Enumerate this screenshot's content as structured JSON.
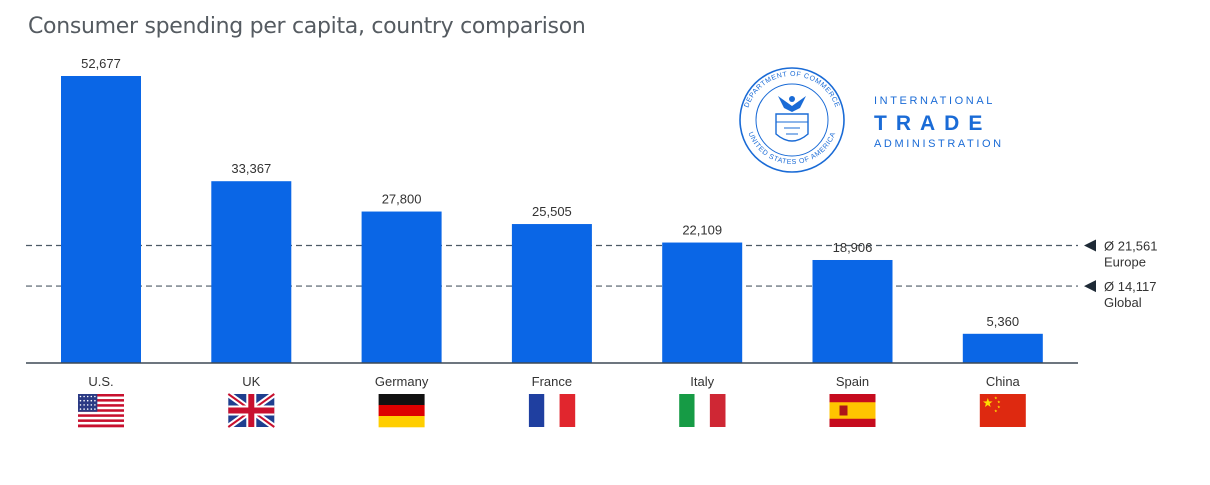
{
  "chart_data": {
    "type": "bar",
    "title": "Consumer spending per capita, country comparison",
    "categories": [
      "U.S.",
      "UK",
      "Germany",
      "France",
      "Italy",
      "Spain",
      "China"
    ],
    "values": [
      52677,
      33367,
      27800,
      25505,
      22109,
      18906,
      5360
    ],
    "value_labels": [
      "52,677",
      "33,367",
      "27,800",
      "25,505",
      "22,109",
      "18,906",
      "5,360"
    ],
    "ylim": [
      0,
      52677
    ],
    "reference_lines": [
      {
        "value": 21561,
        "value_label": "Ø 21,561",
        "label": "Europe"
      },
      {
        "value": 14117,
        "value_label": "Ø 14,117",
        "label": "Global"
      }
    ],
    "xlabel": "",
    "ylabel": "",
    "grid": false,
    "legend": "none"
  },
  "flags": [
    "us-flag",
    "uk-flag",
    "germany-flag",
    "france-flag",
    "italy-flag",
    "spain-flag",
    "china-flag"
  ],
  "logo": {
    "seal_text_top": "DEPARTMENT OF COMMERCE",
    "seal_text_bottom": "UNITED STATES OF AMERICA",
    "line1": "INTERNATIONAL",
    "line2": "TRADE",
    "line3": "ADMINISTRATION"
  },
  "colors": {
    "bar": "#0a66e6",
    "text": "#333333",
    "title": "#555b61",
    "reference": "#4d5a66",
    "logo": "#1a6bd6"
  }
}
